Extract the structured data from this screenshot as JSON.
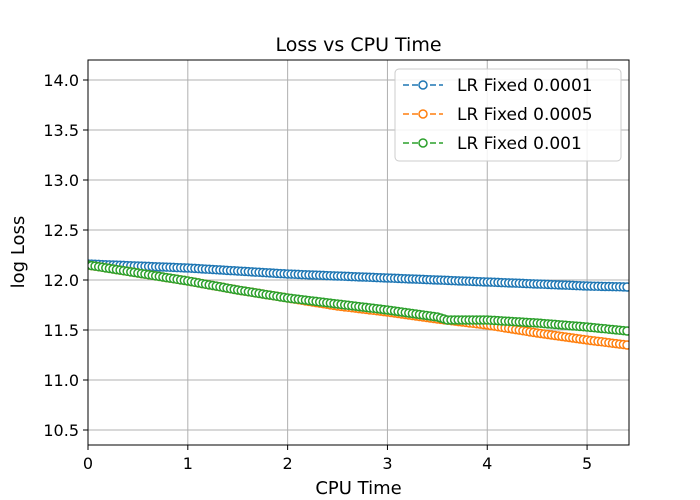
{
  "chart_data": {
    "type": "line",
    "title": "Loss vs CPU Time",
    "xlabel": "CPU Time",
    "ylabel": "log Loss",
    "xlim": [
      0,
      5.42
    ],
    "ylim": [
      10.35,
      14.2
    ],
    "xticks": [
      0,
      1,
      2,
      3,
      4,
      5
    ],
    "yticks": [
      10.5,
      11.0,
      11.5,
      12.0,
      12.5,
      13.0,
      13.5,
      14.0
    ],
    "ytick_labels": [
      "10.5",
      "11.0",
      "11.5",
      "12.0",
      "12.5",
      "13.0",
      "13.5",
      "14.0"
    ],
    "grid": true,
    "legend_position": "top-right",
    "line_style": "dashed",
    "marker": "open-circle",
    "series": [
      {
        "name": "LR Fixed 0.0001",
        "color": "#1f77b4",
        "x": [
          0,
          0.5,
          1.0,
          1.5,
          2.0,
          2.5,
          3.0,
          3.5,
          4.0,
          4.5,
          5.0,
          5.4
        ],
        "y": [
          12.16,
          12.14,
          12.12,
          12.09,
          12.06,
          12.04,
          12.02,
          12.0,
          11.98,
          11.96,
          11.94,
          11.93
        ]
      },
      {
        "name": "LR Fixed 0.0005",
        "color": "#ff7f0e",
        "x": [
          0,
          0.5,
          1.0,
          1.5,
          2.0,
          2.5,
          3.0,
          3.5,
          4.0,
          4.5,
          5.0,
          5.4
        ],
        "y": [
          12.15,
          12.07,
          11.99,
          11.9,
          11.82,
          11.74,
          11.68,
          11.61,
          11.55,
          11.47,
          11.4,
          11.35
        ]
      },
      {
        "name": "LR Fixed 0.001",
        "color": "#2ca02c",
        "x": [
          0,
          0.5,
          1.0,
          1.5,
          2.0,
          2.5,
          3.0,
          3.5,
          3.6,
          4.0,
          4.5,
          5.0,
          5.4
        ],
        "y": [
          12.15,
          12.07,
          11.99,
          11.9,
          11.82,
          11.76,
          11.7,
          11.63,
          11.6,
          11.6,
          11.57,
          11.53,
          11.49
        ]
      }
    ]
  }
}
